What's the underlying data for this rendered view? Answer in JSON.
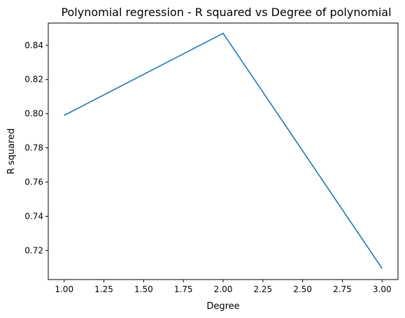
{
  "chart_data": {
    "type": "line",
    "title": "Polynomial regression - R squared vs Degree of polynomial",
    "xlabel": "Degree",
    "ylabel": "R squared",
    "xlim": [
      0.9,
      3.1
    ],
    "ylim": [
      0.703,
      0.853
    ],
    "xticks": [
      1.0,
      1.25,
      1.5,
      1.75,
      2.0,
      2.25,
      2.5,
      2.75,
      3.0
    ],
    "xtick_labels": [
      "1.00",
      "1.25",
      "1.50",
      "1.75",
      "2.00",
      "2.25",
      "2.50",
      "2.75",
      "3.00"
    ],
    "yticks": [
      0.72,
      0.74,
      0.76,
      0.78,
      0.8,
      0.82,
      0.84
    ],
    "ytick_labels": [
      "0.72",
      "0.74",
      "0.76",
      "0.78",
      "0.80",
      "0.82",
      "0.84"
    ],
    "grid": false,
    "series": [
      {
        "color": "#1f77b4",
        "x": [
          1,
          2,
          3
        ],
        "y": [
          0.799,
          0.847,
          0.7095
        ]
      }
    ]
  }
}
